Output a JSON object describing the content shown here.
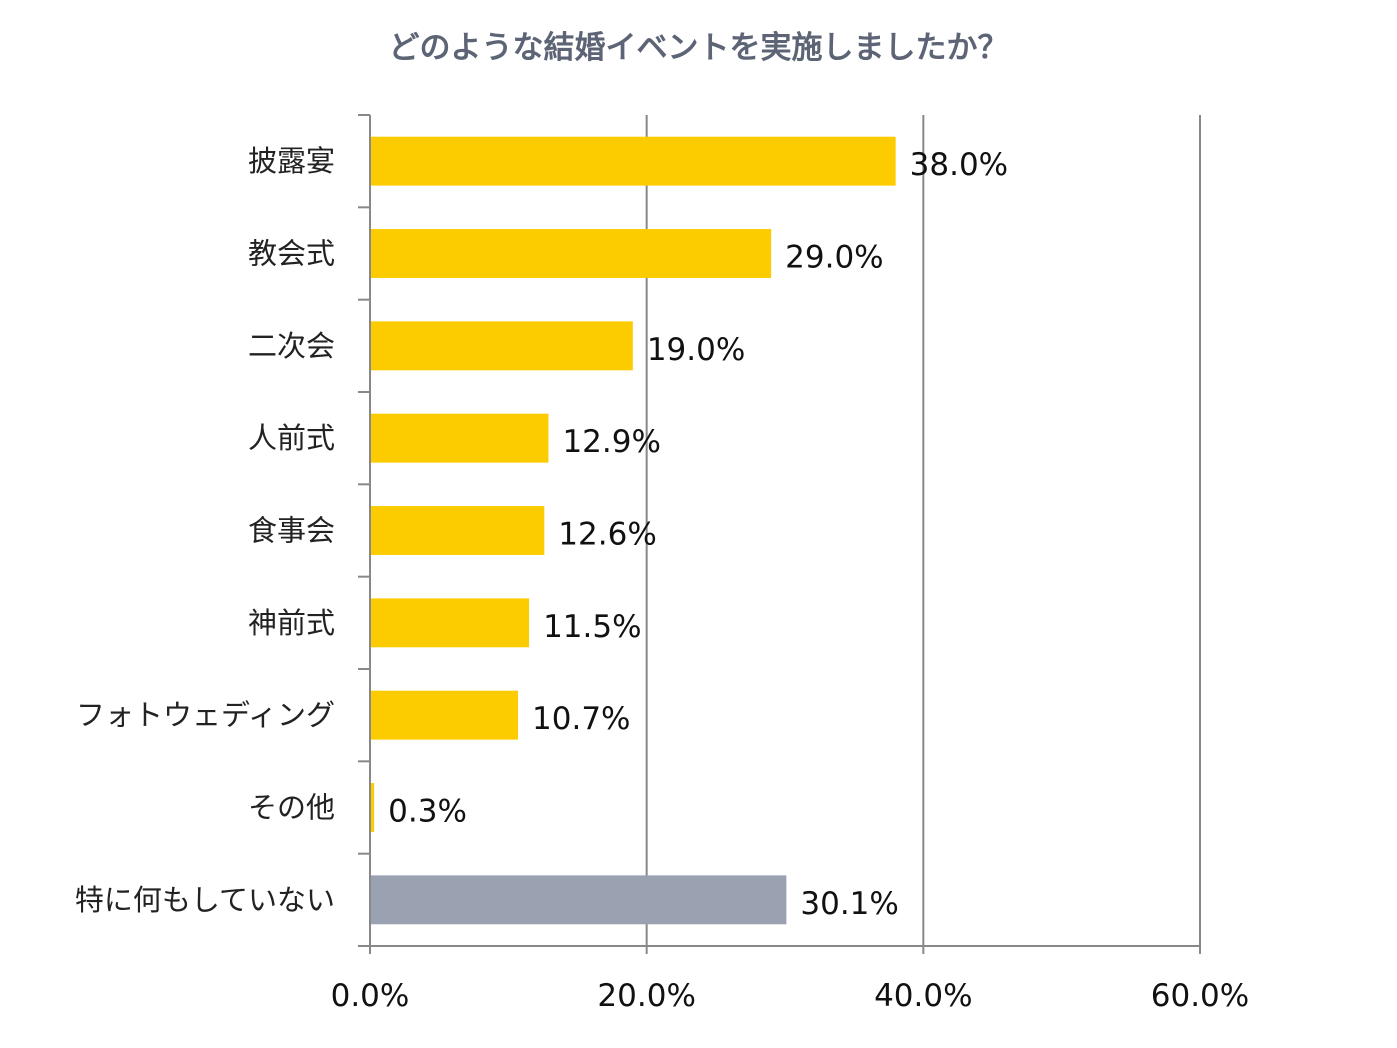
{
  "chart_data": {
    "type": "bar",
    "orientation": "horizontal",
    "title": "どのような結婚イベントを実施しましたか？",
    "categories": [
      "披露宴",
      "教会式",
      "二次会",
      "人前式",
      "食事会",
      "神前式",
      "フォトウェディング",
      "その他",
      "特に何もしていない"
    ],
    "values": [
      38.0,
      29.0,
      19.0,
      12.9,
      12.6,
      11.5,
      10.7,
      0.3,
      30.1
    ],
    "value_labels": [
      "38.0%",
      "29.0%",
      "19.0%",
      "12.9%",
      "12.6%",
      "11.5%",
      "10.7%",
      "0.3%",
      "30.1%"
    ],
    "xlim": [
      0,
      60
    ],
    "x_ticks": [
      0,
      20,
      40,
      60
    ],
    "x_tick_labels": [
      "0.0%",
      "20.0%",
      "40.0%",
      "60.0%"
    ],
    "grid": "vertical",
    "colors": {
      "bar": "#fccc00",
      "highlight_bar": "#9aa2b2",
      "grid": "#888888",
      "title": "#5c6475"
    },
    "highlight_index": 8
  }
}
